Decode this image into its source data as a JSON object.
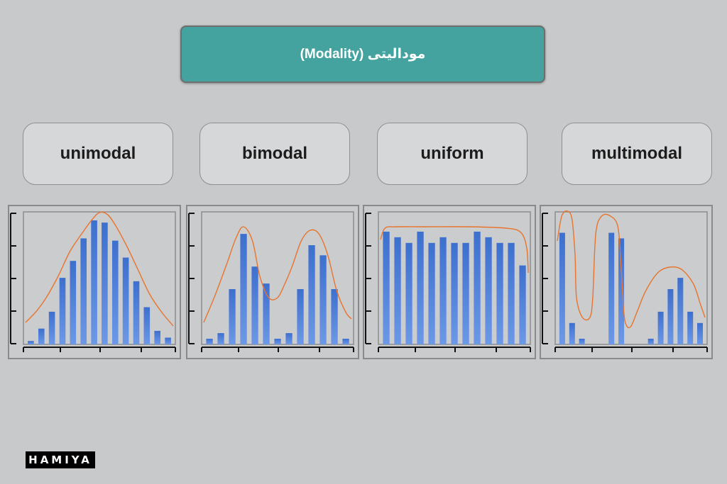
{
  "title": "مودالیتی (Modality)",
  "colors": {
    "title_bg": "#44a39e",
    "bar": "#4a78d0",
    "curve": "#e8742e"
  },
  "logo": "HAMIYA",
  "chart_data": [
    {
      "type": "bar",
      "label": "unimodal",
      "values": [
        3,
        14,
        29,
        59,
        74,
        94,
        110,
        108,
        92,
        77,
        56,
        33,
        12,
        6
      ],
      "curve": [
        [
          0,
          455
        ],
        [
          0.07,
          440
        ],
        [
          0.14,
          420
        ],
        [
          0.22,
          390
        ],
        [
          0.3,
          355
        ],
        [
          0.38,
          330
        ],
        [
          0.45,
          310
        ],
        [
          0.5,
          300
        ],
        [
          0.55,
          302
        ],
        [
          0.6,
          315
        ],
        [
          0.68,
          345
        ],
        [
          0.76,
          380
        ],
        [
          0.84,
          415
        ],
        [
          0.92,
          440
        ],
        [
          1,
          460
        ]
      ]
    },
    {
      "type": "bar",
      "label": "bimodal",
      "values": [
        5,
        10,
        49,
        98,
        69,
        54,
        5,
        10,
        49,
        88,
        79,
        49,
        5
      ],
      "curve": [
        [
          0,
          455
        ],
        [
          0.08,
          415
        ],
        [
          0.16,
          370
        ],
        [
          0.22,
          335
        ],
        [
          0.27,
          320
        ],
        [
          0.33,
          340
        ],
        [
          0.38,
          390
        ],
        [
          0.44,
          420
        ],
        [
          0.5,
          420
        ],
        [
          0.55,
          400
        ],
        [
          0.6,
          375
        ],
        [
          0.66,
          340
        ],
        [
          0.72,
          325
        ],
        [
          0.78,
          330
        ],
        [
          0.84,
          360
        ],
        [
          0.9,
          410
        ],
        [
          0.96,
          440
        ],
        [
          1,
          450
        ]
      ]
    },
    {
      "type": "bar",
      "label": "uniform",
      "values": [
        100,
        95,
        90,
        100,
        90,
        95,
        90,
        90,
        100,
        95,
        90,
        90,
        70
      ],
      "curve": [
        [
          0,
          338
        ],
        [
          0.03,
          322
        ],
        [
          0.1,
          320
        ],
        [
          0.3,
          320
        ],
        [
          0.6,
          320
        ],
        [
          0.85,
          322
        ],
        [
          0.95,
          328
        ],
        [
          0.99,
          350
        ],
        [
          1,
          385
        ]
      ]
    },
    {
      "type": "bar",
      "label": "multimodal",
      "values": [
        99,
        19,
        5,
        0,
        0,
        99,
        94,
        0,
        0,
        5,
        29,
        49,
        59,
        29,
        19
      ],
      "curve": [
        [
          0,
          340
        ],
        [
          0.03,
          305
        ],
        [
          0.07,
          298
        ],
        [
          0.1,
          310
        ],
        [
          0.12,
          360
        ],
        [
          0.13,
          420
        ],
        [
          0.17,
          448
        ],
        [
          0.22,
          448
        ],
        [
          0.24,
          420
        ],
        [
          0.26,
          330
        ],
        [
          0.3,
          305
        ],
        [
          0.36,
          305
        ],
        [
          0.41,
          320
        ],
        [
          0.43,
          370
        ],
        [
          0.45,
          440
        ],
        [
          0.47,
          460
        ],
        [
          0.5,
          460
        ],
        [
          0.54,
          440
        ],
        [
          0.6,
          410
        ],
        [
          0.68,
          385
        ],
        [
          0.76,
          377
        ],
        [
          0.84,
          380
        ],
        [
          0.92,
          400
        ],
        [
          0.97,
          430
        ],
        [
          1,
          448
        ]
      ]
    }
  ]
}
